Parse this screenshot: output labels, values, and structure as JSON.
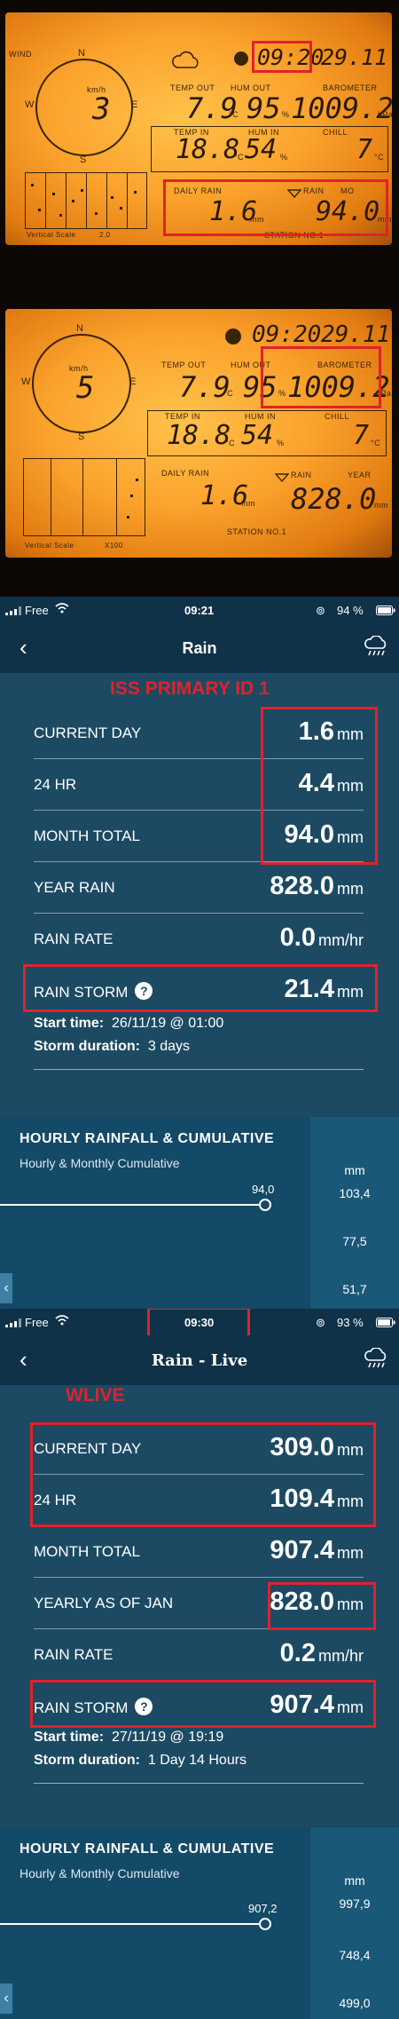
{
  "lcd1": {
    "wind_label": "WIND",
    "compass": [
      "N",
      "E",
      "S",
      "W"
    ],
    "wind_unit": "km/h",
    "wind_speed": "3",
    "time": "09:20",
    "date": "29.11",
    "temp_out_label": "TEMP OUT",
    "temp_out": "7.9",
    "hum_out_label": "HUM OUT",
    "hum_out": "95",
    "barometer_label": "BAROMETER",
    "barometer": "1009.2",
    "baro_unit": "hPa",
    "temp_in_label": "TEMP IN",
    "temp_in": "18.8",
    "hum_in_label": "HUM IN",
    "hum_in": "54",
    "chill_label": "CHILL",
    "chill": "7",
    "daily_rain_label": "DAILY RAIN",
    "daily_rain": "1.6",
    "rain_label": "RAIN",
    "period_label": "MO",
    "rain_value": "94.0",
    "unit_mm": "mm",
    "unit_c": "°C",
    "unit_pct": "%",
    "station": "STATION NO.1",
    "vscale": "Vertical Scale",
    "vscale_value": "2.0"
  },
  "lcd2": {
    "wind_unit": "km/h",
    "wind_speed": "5",
    "compass": [
      "N",
      "E",
      "S",
      "W"
    ],
    "time": "09:20",
    "date": "29.11",
    "temp_out_label": "TEMP OUT",
    "temp_out": "7.9",
    "hum_out_label": "HUM OUT",
    "hum_out": "95",
    "barometer_label": "BAROMETER",
    "barometer": "1009.2",
    "baro_unit": "hPa",
    "temp_in_label": "TEMP IN",
    "temp_in": "18.8",
    "hum_in_label": "HUM IN",
    "hum_in": "54",
    "chill_label": "CHILL",
    "chill": "7",
    "daily_rain_label": "DAILY RAIN",
    "daily_rain": "1.6",
    "rain_label": "RAIN",
    "period_label": "YEAR",
    "rain_value": "828.0",
    "unit_mm": "mm",
    "unit_c": "°C",
    "unit_pct": "%",
    "station": "STATION NO.1",
    "vscale": "Vertical Scale",
    "vscale_value": "X100"
  },
  "screen1": {
    "status": {
      "carrier": "Free",
      "time": "09:21",
      "battery": "94 %"
    },
    "title": "Rain",
    "annotation": "ISS PRIMARY ID 1",
    "rows": [
      {
        "label": "CURRENT DAY",
        "value": "1.6",
        "unit": "mm"
      },
      {
        "label": "24 HR",
        "value": "4.4",
        "unit": "mm"
      },
      {
        "label": "MONTH TOTAL",
        "value": "94.0",
        "unit": "mm"
      },
      {
        "label": "YEAR RAIN",
        "value": "828.0",
        "unit": "mm"
      },
      {
        "label": "RAIN RATE",
        "value": "0.0",
        "unit": "mm/hr"
      },
      {
        "label": "RAIN STORM",
        "value": "21.4",
        "unit": "mm"
      }
    ],
    "start_label": "Start time:",
    "start_value": "26/11/19 @ 01:00",
    "duration_label": "Storm duration:",
    "duration_value": "3 days",
    "chart": {
      "title": "HOURLY RAINFALL & CUMULATIVE",
      "subtitle": "Hourly & Monthly Cumulative",
      "unit": "mm",
      "point_label": "94,0",
      "scale": [
        "103,4",
        "77,5",
        "51,7"
      ]
    }
  },
  "screen2": {
    "status": {
      "carrier": "Free",
      "time": "09:30",
      "battery": "93 %"
    },
    "title": "Rain - Live",
    "annotation": "WLIVE",
    "rows": [
      {
        "label": "CURRENT DAY",
        "value": "309.0",
        "unit": "mm"
      },
      {
        "label": "24 HR",
        "value": "109.4",
        "unit": "mm"
      },
      {
        "label": "MONTH TOTAL",
        "value": "907.4",
        "unit": "mm"
      },
      {
        "label": "YEARLY AS OF JAN",
        "value": "828.0",
        "unit": "mm"
      },
      {
        "label": "RAIN RATE",
        "value": "0.2",
        "unit": "mm/hr"
      },
      {
        "label": "RAIN STORM",
        "value": "907.4",
        "unit": "mm"
      }
    ],
    "start_label": "Start time:",
    "start_value": "27/11/19 @ 19:19",
    "duration_label": "Storm duration:",
    "duration_value": "1 Day 14 Hours",
    "chart": {
      "title": "HOURLY RAINFALL & CUMULATIVE",
      "subtitle": "Hourly & Monthly Cumulative",
      "unit": "mm",
      "point_label": "907,2",
      "scale": [
        "997,9",
        "748,4",
        "499,0"
      ]
    }
  },
  "colors": {
    "highlight": "#e0222b",
    "app_bg": "#1c4a63",
    "header_bg": "#0f3249",
    "lcd": "#fba22c"
  }
}
